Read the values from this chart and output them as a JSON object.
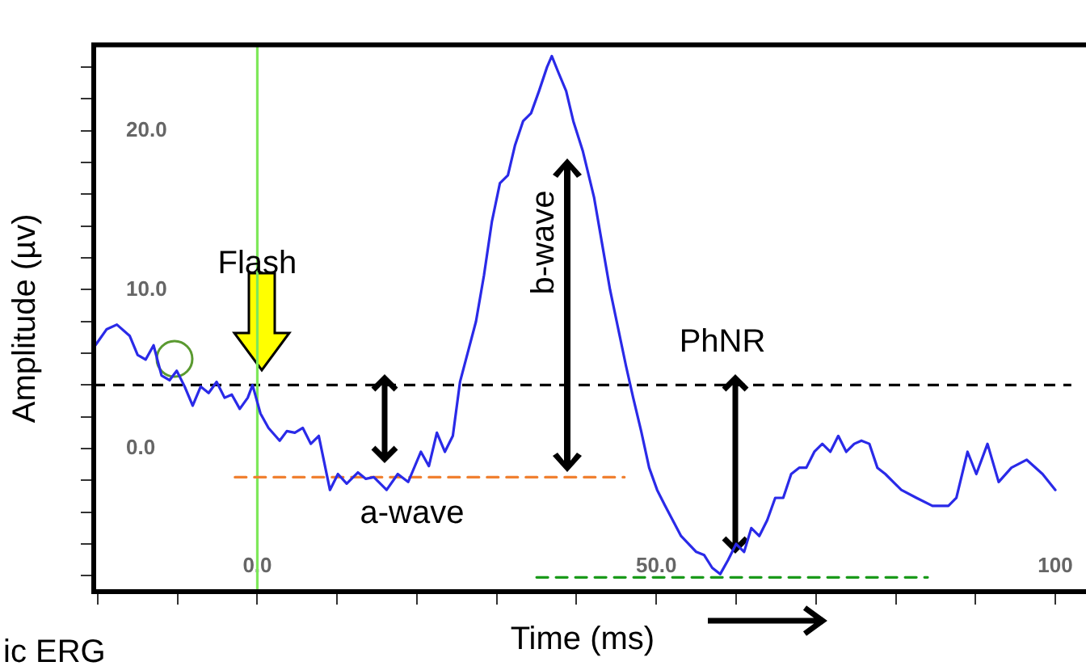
{
  "chart_data": {
    "type": "line",
    "xlabel": "Time (ms)",
    "ylabel": "Amplitude (µv)",
    "xlim": [
      -20.5,
      102
    ],
    "ylim": [
      -9,
      25.4
    ],
    "xticks": [
      {
        "value": -20,
        "label": null
      },
      {
        "value": -10,
        "label": null
      },
      {
        "value": 0,
        "label": "0.0"
      },
      {
        "value": 10,
        "label": null
      },
      {
        "value": 20,
        "label": null
      },
      {
        "value": 30,
        "label": null
      },
      {
        "value": 40,
        "label": null
      },
      {
        "value": 50,
        "label": "50.0"
      },
      {
        "value": 60,
        "label": null
      },
      {
        "value": 70,
        "label": null
      },
      {
        "value": 80,
        "label": null
      },
      {
        "value": 90,
        "label": null
      },
      {
        "value": 100,
        "label": "100"
      }
    ],
    "yticks": [
      {
        "value": -8,
        "label": null
      },
      {
        "value": -6,
        "label": null
      },
      {
        "value": -4,
        "label": null
      },
      {
        "value": -2,
        "label": null
      },
      {
        "value": 0,
        "label": "0.0"
      },
      {
        "value": 2,
        "label": null
      },
      {
        "value": 4,
        "label": null
      },
      {
        "value": 6,
        "label": null
      },
      {
        "value": 8,
        "label": null
      },
      {
        "value": 10,
        "label": "10.0"
      },
      {
        "value": 12,
        "label": null
      },
      {
        "value": 14,
        "label": null
      },
      {
        "value": 16,
        "label": null
      },
      {
        "value": 18,
        "label": null
      },
      {
        "value": 20,
        "label": "20.0"
      },
      {
        "value": 22,
        "label": null
      },
      {
        "value": 24,
        "label": null
      }
    ],
    "grid": false,
    "legend": false,
    "marker": "none",
    "line_style": "solid",
    "series": [
      {
        "color": "#2a2ae8",
        "x": [
          -20.3,
          -18.9,
          -17.6,
          -16.0,
          -15.0,
          -14.0,
          -13.0,
          -12.0,
          -11.0,
          -10.1,
          -9.1,
          -8.1,
          -7.1,
          -6.1,
          -5.1,
          -4.1,
          -3.2,
          -2.2,
          -1.2,
          -0.6,
          0.4,
          1.4,
          2.8,
          3.7,
          4.7,
          5.7,
          6.7,
          7.7,
          9.1,
          10.1,
          11.2,
          12.6,
          13.6,
          14.6,
          16.2,
          17.6,
          18.9,
          20.5,
          21.5,
          22.5,
          23.5,
          24.5,
          25.4,
          26.4,
          27.4,
          28.4,
          29.4,
          30.4,
          31.4,
          32.3,
          33.3,
          34.3,
          35.3,
          36.3,
          36.9,
          37.7,
          38.7,
          39.6,
          40.8,
          42.2,
          43.2,
          44.2,
          45.2,
          46.2,
          47.1,
          48.1,
          49.1,
          50.1,
          51.1,
          53.1,
          55.0,
          56.0,
          57.0,
          58.0,
          59.0,
          60.0,
          61.0,
          61.9,
          62.9,
          63.9,
          64.9,
          65.9,
          66.9,
          67.9,
          68.8,
          69.8,
          70.8,
          71.8,
          72.8,
          73.8,
          74.8,
          75.7,
          76.7,
          77.7,
          78.7,
          79.7,
          80.7,
          82.6,
          84.6,
          86.6,
          87.6,
          89.0,
          90.1,
          91.5,
          92.9,
          94.5,
          96.4,
          98.4,
          100.0
        ],
        "values": [
          6.5,
          7.5,
          7.8,
          7.1,
          5.9,
          5.6,
          6.5,
          4.6,
          4.3,
          4.9,
          3.9,
          2.7,
          3.9,
          3.5,
          4.2,
          3.2,
          3.4,
          2.5,
          3.2,
          4.0,
          2.2,
          1.3,
          0.5,
          1.1,
          1.0,
          1.3,
          0.3,
          0.8,
          -2.6,
          -1.6,
          -2.2,
          -1.5,
          -1.9,
          -1.8,
          -2.6,
          -1.6,
          -2.1,
          -0.2,
          -1.1,
          1.0,
          -0.2,
          0.8,
          4.2,
          6.1,
          8.0,
          10.9,
          14.3,
          16.7,
          17.2,
          19.1,
          20.6,
          21.1,
          22.5,
          24.0,
          24.7,
          23.7,
          22.5,
          20.6,
          18.7,
          15.8,
          12.9,
          10.0,
          7.6,
          5.2,
          3.2,
          1.1,
          -1.2,
          -2.6,
          -3.6,
          -5.5,
          -6.5,
          -6.7,
          -7.5,
          -7.9,
          -7.0,
          -6.0,
          -6.5,
          -5.0,
          -5.5,
          -4.5,
          -3.1,
          -3.1,
          -1.6,
          -1.2,
          -1.2,
          -0.2,
          0.3,
          -0.2,
          0.8,
          -0.2,
          0.3,
          0.5,
          0.3,
          -1.2,
          -1.6,
          -2.1,
          -2.6,
          -3.1,
          -3.6,
          -3.6,
          -3.1,
          -0.2,
          -1.6,
          0.3,
          -2.1,
          -1.2,
          -0.7,
          -1.6,
          -2.6
        ]
      },
      {
        "color": "#f08030",
        "line_style": "dashed",
        "x": [
          -2.8,
          46
        ],
        "values": [
          -1.8,
          -1.8
        ]
      },
      {
        "color": "#1a9a1a",
        "line_style": "dashed",
        "x": [
          35,
          84
        ],
        "values": [
          -8.1,
          -8.1
        ]
      }
    ],
    "ref_lines": [
      {
        "axis": "y",
        "value": 4.0,
        "color": "#000000",
        "line_style": "dashed"
      },
      {
        "axis": "x",
        "value": 0,
        "color": "#7ee85a",
        "line_style": "solid"
      }
    ],
    "annotations": [
      {
        "text": "Flash",
        "x": 0,
        "y": 11.6
      },
      "a-wave",
      "b-wave",
      "PhNR",
      "ic ERG"
    ]
  }
}
